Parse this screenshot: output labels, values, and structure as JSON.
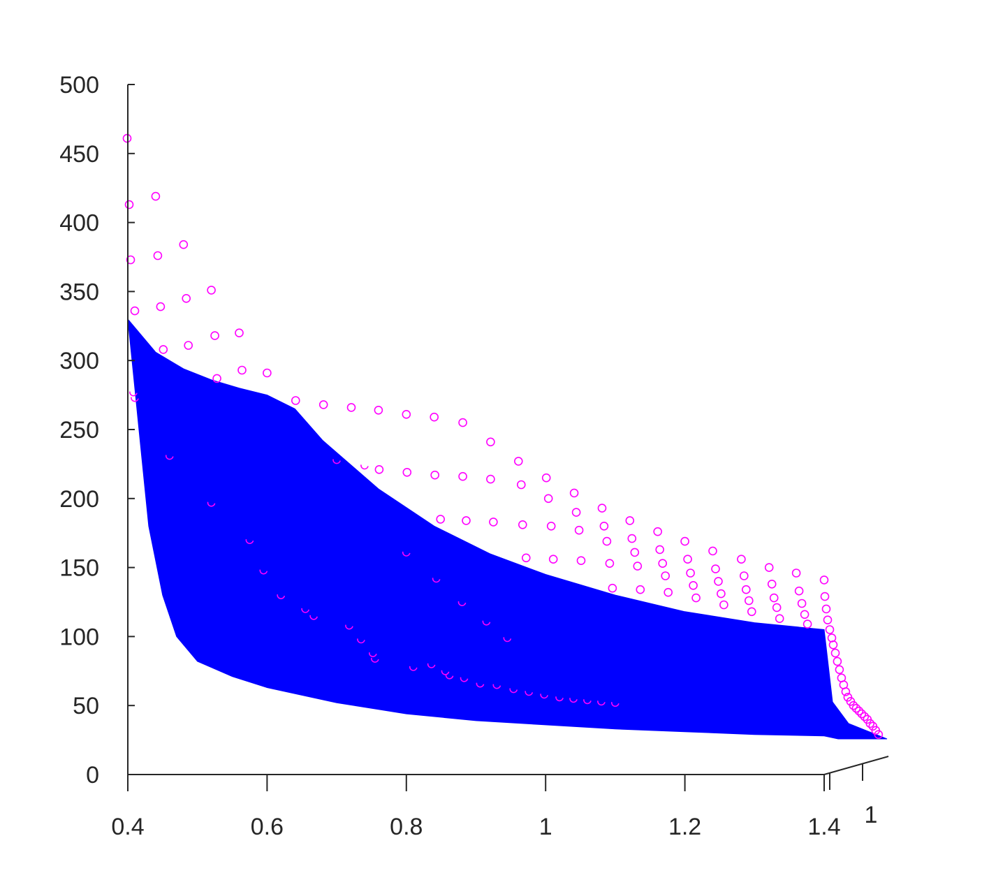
{
  "chart_data": {
    "type": "surface-3d",
    "title": "",
    "xlabel": "",
    "ylabel": "",
    "zlabel": "",
    "xlim": [
      0.4,
      1.4
    ],
    "zlim": [
      0,
      500
    ],
    "x_ticks": [
      "0.4",
      "0.6",
      "0.8",
      "1",
      "1.2",
      "1.4"
    ],
    "z_ticks": [
      "0",
      "50",
      "100",
      "150",
      "200",
      "250",
      "300",
      "350",
      "400",
      "450",
      "500"
    ],
    "y_ticks": [
      "1"
    ],
    "surface": {
      "color": "#0000ff",
      "front_edge": [
        {
          "x": 0.4,
          "z": 330
        },
        {
          "x": 0.44,
          "z": 306
        },
        {
          "x": 0.48,
          "z": 294
        },
        {
          "x": 0.52,
          "z": 286
        },
        {
          "x": 0.56,
          "z": 280
        },
        {
          "x": 0.6,
          "z": 275
        },
        {
          "x": 0.64,
          "z": 265
        },
        {
          "x": 0.68,
          "z": 242
        },
        {
          "x": 0.76,
          "z": 207
        },
        {
          "x": 0.84,
          "z": 180
        },
        {
          "x": 0.92,
          "z": 160
        },
        {
          "x": 1.0,
          "z": 145
        },
        {
          "x": 1.1,
          "z": 130
        },
        {
          "x": 1.2,
          "z": 118
        },
        {
          "x": 1.3,
          "z": 110
        },
        {
          "x": 1.4,
          "z": 105
        }
      ],
      "back_edge": [
        {
          "x": 0.4,
          "z": 330
        },
        {
          "x": 0.41,
          "z": 280
        },
        {
          "x": 0.42,
          "z": 230
        },
        {
          "x": 0.43,
          "z": 180
        },
        {
          "x": 0.45,
          "z": 130
        },
        {
          "x": 0.47,
          "z": 100
        },
        {
          "x": 0.5,
          "z": 82
        },
        {
          "x": 0.55,
          "z": 71
        },
        {
          "x": 0.6,
          "z": 63
        },
        {
          "x": 0.7,
          "z": 52
        },
        {
          "x": 0.8,
          "z": 44
        },
        {
          "x": 0.9,
          "z": 39
        },
        {
          "x": 1.0,
          "z": 36
        },
        {
          "x": 1.1,
          "z": 33
        },
        {
          "x": 1.2,
          "z": 31
        },
        {
          "x": 1.3,
          "z": 29
        },
        {
          "x": 1.4,
          "z": 28
        }
      ]
    },
    "scatter": {
      "color": "#ff00ff",
      "marker": "circle",
      "points": [
        {
          "x": 0.399,
          "z": 461
        },
        {
          "x": 0.402,
          "z": 413
        },
        {
          "x": 0.404,
          "z": 373
        },
        {
          "x": 0.41,
          "z": 336
        },
        {
          "x": 0.44,
          "z": 419
        },
        {
          "x": 0.443,
          "z": 376
        },
        {
          "x": 0.447,
          "z": 339
        },
        {
          "x": 0.451,
          "z": 308
        },
        {
          "x": 0.48,
          "z": 384
        },
        {
          "x": 0.484,
          "z": 345
        },
        {
          "x": 0.487,
          "z": 311
        },
        {
          "x": 0.52,
          "z": 351
        },
        {
          "x": 0.525,
          "z": 318
        },
        {
          "x": 0.528,
          "z": 287
        },
        {
          "x": 0.56,
          "z": 320
        },
        {
          "x": 0.564,
          "z": 293
        },
        {
          "x": 0.6,
          "z": 291
        },
        {
          "x": 0.641,
          "z": 271
        },
        {
          "x": 0.681,
          "z": 268
        },
        {
          "x": 0.721,
          "z": 266
        },
        {
          "x": 0.76,
          "z": 264
        },
        {
          "x": 0.8,
          "z": 261
        },
        {
          "x": 0.84,
          "z": 259
        },
        {
          "x": 0.881,
          "z": 255
        },
        {
          "x": 0.921,
          "z": 241
        },
        {
          "x": 0.961,
          "z": 227
        },
        {
          "x": 1.001,
          "z": 215
        },
        {
          "x": 1.041,
          "z": 204
        },
        {
          "x": 1.081,
          "z": 193
        },
        {
          "x": 1.121,
          "z": 184
        },
        {
          "x": 1.161,
          "z": 176
        },
        {
          "x": 1.2,
          "z": 169
        },
        {
          "x": 1.24,
          "z": 162
        },
        {
          "x": 1.281,
          "z": 156
        },
        {
          "x": 1.321,
          "z": 150
        },
        {
          "x": 1.36,
          "z": 146
        },
        {
          "x": 1.4,
          "z": 141
        },
        {
          "x": 0.761,
          "z": 221
        },
        {
          "x": 0.801,
          "z": 219
        },
        {
          "x": 0.841,
          "z": 217
        },
        {
          "x": 0.881,
          "z": 216
        },
        {
          "x": 0.921,
          "z": 214
        },
        {
          "x": 0.965,
          "z": 210
        },
        {
          "x": 1.004,
          "z": 200
        },
        {
          "x": 1.044,
          "z": 190
        },
        {
          "x": 1.084,
          "z": 180
        },
        {
          "x": 1.124,
          "z": 171
        },
        {
          "x": 1.164,
          "z": 163
        },
        {
          "x": 1.204,
          "z": 156
        },
        {
          "x": 1.244,
          "z": 149
        },
        {
          "x": 1.285,
          "z": 144
        },
        {
          "x": 1.325,
          "z": 138
        },
        {
          "x": 1.364,
          "z": 133
        },
        {
          "x": 0.849,
          "z": 185
        },
        {
          "x": 0.886,
          "z": 184
        },
        {
          "x": 0.925,
          "z": 183
        },
        {
          "x": 0.967,
          "z": 181
        },
        {
          "x": 1.008,
          "z": 180
        },
        {
          "x": 1.048,
          "z": 177
        },
        {
          "x": 1.088,
          "z": 169
        },
        {
          "x": 1.128,
          "z": 161
        },
        {
          "x": 1.168,
          "z": 153
        },
        {
          "x": 1.208,
          "z": 146
        },
        {
          "x": 1.248,
          "z": 140
        },
        {
          "x": 1.288,
          "z": 134
        },
        {
          "x": 1.328,
          "z": 128
        },
        {
          "x": 1.368,
          "z": 124
        },
        {
          "x": 0.972,
          "z": 157
        },
        {
          "x": 1.011,
          "z": 156
        },
        {
          "x": 1.051,
          "z": 155
        },
        {
          "x": 1.092,
          "z": 153
        },
        {
          "x": 1.132,
          "z": 151
        },
        {
          "x": 1.172,
          "z": 144
        },
        {
          "x": 1.212,
          "z": 137
        },
        {
          "x": 1.252,
          "z": 131
        },
        {
          "x": 1.292,
          "z": 126
        },
        {
          "x": 1.332,
          "z": 121
        },
        {
          "x": 1.372,
          "z": 116
        },
        {
          "x": 1.096,
          "z": 135
        },
        {
          "x": 1.136,
          "z": 134
        },
        {
          "x": 1.176,
          "z": 132
        },
        {
          "x": 1.216,
          "z": 128
        },
        {
          "x": 1.256,
          "z": 123
        },
        {
          "x": 1.296,
          "z": 118
        },
        {
          "x": 1.336,
          "z": 113
        },
        {
          "x": 1.376,
          "z": 109
        },
        {
          "x": 1.401,
          "z": 129
        },
        {
          "x": 1.403,
          "z": 120
        },
        {
          "x": 1.405,
          "z": 112
        },
        {
          "x": 1.408,
          "z": 105
        },
        {
          "x": 1.411,
          "z": 99
        },
        {
          "x": 1.413,
          "z": 94
        },
        {
          "x": 1.416,
          "z": 88
        },
        {
          "x": 1.419,
          "z": 82
        },
        {
          "x": 1.422,
          "z": 76
        },
        {
          "x": 1.425,
          "z": 70
        },
        {
          "x": 1.428,
          "z": 65
        },
        {
          "x": 1.431,
          "z": 60
        },
        {
          "x": 1.434,
          "z": 56
        },
        {
          "x": 1.438,
          "z": 53
        },
        {
          "x": 1.442,
          "z": 50
        },
        {
          "x": 1.446,
          "z": 48
        },
        {
          "x": 1.45,
          "z": 46
        },
        {
          "x": 1.454,
          "z": 44
        },
        {
          "x": 1.458,
          "z": 42
        },
        {
          "x": 1.462,
          "z": 40
        },
        {
          "x": 1.466,
          "z": 37
        },
        {
          "x": 1.47,
          "z": 35
        },
        {
          "x": 1.474,
          "z": 32
        },
        {
          "x": 1.478,
          "z": 29
        }
      ],
      "partially_hidden_points": [
        {
          "x": 0.408,
          "z": 277
        },
        {
          "x": 0.41,
          "z": 273
        },
        {
          "x": 0.46,
          "z": 231
        },
        {
          "x": 0.52,
          "z": 197
        },
        {
          "x": 0.575,
          "z": 170
        },
        {
          "x": 0.595,
          "z": 148
        },
        {
          "x": 0.62,
          "z": 130
        },
        {
          "x": 0.655,
          "z": 120
        },
        {
          "x": 0.667,
          "z": 115
        },
        {
          "x": 0.7,
          "z": 228
        },
        {
          "x": 0.74,
          "z": 224
        },
        {
          "x": 0.718,
          "z": 108
        },
        {
          "x": 0.735,
          "z": 98
        },
        {
          "x": 0.752,
          "z": 88
        },
        {
          "x": 0.755,
          "z": 84
        },
        {
          "x": 0.81,
          "z": 78
        },
        {
          "x": 0.836,
          "z": 80
        },
        {
          "x": 0.856,
          "z": 75
        },
        {
          "x": 0.862,
          "z": 72
        },
        {
          "x": 0.883,
          "z": 70
        },
        {
          "x": 0.906,
          "z": 66
        },
        {
          "x": 0.93,
          "z": 65
        },
        {
          "x": 0.954,
          "z": 62
        },
        {
          "x": 0.976,
          "z": 60
        },
        {
          "x": 0.998,
          "z": 58
        },
        {
          "x": 1.02,
          "z": 56
        },
        {
          "x": 1.04,
          "z": 55
        },
        {
          "x": 1.06,
          "z": 54
        },
        {
          "x": 1.08,
          "z": 53
        },
        {
          "x": 1.1,
          "z": 52
        },
        {
          "x": 0.8,
          "z": 161
        },
        {
          "x": 0.843,
          "z": 142
        },
        {
          "x": 0.88,
          "z": 125
        },
        {
          "x": 0.915,
          "z": 111
        },
        {
          "x": 0.945,
          "z": 99
        }
      ]
    },
    "grid": false,
    "legend": "none"
  }
}
